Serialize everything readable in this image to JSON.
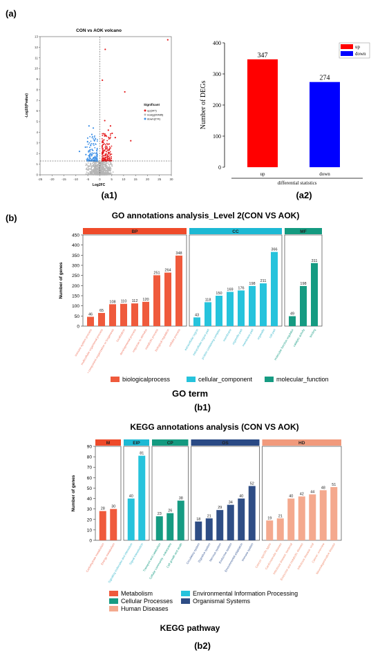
{
  "labels": {
    "a": "(a)",
    "a1": "(a1)",
    "a2": "(a2)",
    "b": "(b)",
    "b1": "(b1)",
    "b2": "(b2)"
  },
  "chart_data": [
    {
      "id": "volcano",
      "type": "scatter",
      "title": "CON vs AOK volcano",
      "xlabel": "Log2FC",
      "ylabel": "-Log10(Pvalue)",
      "xlim": [
        -25,
        30
      ],
      "ylim": [
        0,
        13
      ],
      "xticks": [
        -25,
        -20,
        -15,
        -10,
        -5,
        0,
        5,
        10,
        15,
        20,
        25,
        30
      ],
      "yticks": [
        0,
        1,
        2,
        3,
        4,
        5,
        6,
        7,
        8,
        9,
        10,
        11,
        12,
        13
      ],
      "thresholds": {
        "x": [
          -1,
          1
        ],
        "y": 1.3
      },
      "legend_title": "Significant",
      "series": [
        {
          "name": "up(347)",
          "color": "#e41a1c",
          "points": [
            [
              28.5,
              12.7
            ],
            [
              2.3,
              11.8
            ],
            [
              1.1,
              8.9
            ],
            [
              10.5,
              7.8
            ],
            [
              13,
              3.2
            ],
            [
              4.5,
              4.6
            ],
            [
              5.2,
              3.9
            ],
            [
              3.6,
              4.2
            ],
            [
              6.5,
              3.5
            ],
            [
              2.1,
              5.1
            ],
            [
              3.9,
              2.9
            ],
            [
              2.6,
              3.7
            ]
          ]
        },
        {
          "name": "nosig(20485)",
          "color": "#b5b5b5",
          "points": []
        },
        {
          "name": "down(274)",
          "color": "#3a8ee6",
          "points": [
            [
              -4.5,
              4.6
            ],
            [
              -2.7,
              4.4
            ],
            [
              -3.3,
              3.8
            ],
            [
              -5.1,
              3.1
            ],
            [
              -6,
              2.6
            ],
            [
              -2.2,
              3.2
            ],
            [
              -3.8,
              2.8
            ],
            [
              -8.5,
              2.2
            ],
            [
              -4.2,
              2.3
            ],
            [
              -5.8,
              1.9
            ]
          ]
        }
      ]
    },
    {
      "id": "degs",
      "type": "bar",
      "categories": [
        "up",
        "down"
      ],
      "values": [
        347,
        274
      ],
      "colors": [
        "#ff0000",
        "#0000ff"
      ],
      "xlabel": "differential statistics",
      "ylabel": "Number of DEGs",
      "ylim": [
        0,
        400
      ],
      "yticks": [
        0,
        100,
        200,
        300,
        400
      ],
      "legend": [
        "up",
        "down"
      ]
    },
    {
      "id": "go",
      "type": "bar",
      "title": "GO annotations analysis_Level 2(CON VS AOK)",
      "ylabel": "Number of genes",
      "xlabel": "GO term",
      "ylim": [
        0,
        450
      ],
      "yticks": [
        0,
        50,
        100,
        150,
        200,
        250,
        300,
        350,
        400,
        450
      ],
      "groups": [
        {
          "short": "BP",
          "name": "biologicalprocess",
          "color": "#ef5a3c",
          "header_color": "#ef4b2a",
          "text_color": "#f07a66",
          "items": [
            [
              "immune system process",
              46
            ],
            [
              "multicellular organismal process",
              65
            ],
            [
              "cellular component organization or biogenesis",
              108
            ],
            [
              "localization",
              110
            ],
            [
              "developmental process",
              112
            ],
            [
              "response to stimulus",
              120
            ],
            [
              "metabolic process",
              251
            ],
            [
              "biological regulation",
              264
            ],
            [
              "cellular process",
              348
            ]
          ]
        },
        {
          "short": "CC",
          "name": "cellular_component",
          "color": "#26c3dc",
          "header_color": "#1db9d4",
          "text_color": "#3ab8cc",
          "items": [
            [
              "extracellular region",
              43
            ],
            [
              "extracellular region part",
              118
            ],
            [
              "protein-containing complex",
              150
            ],
            [
              "membrane",
              169
            ],
            [
              "organelle part",
              176
            ],
            [
              "membrane part",
              198
            ],
            [
              "organelle",
              211
            ],
            [
              "cell part",
              366
            ]
          ]
        },
        {
          "short": "MF",
          "name": "molecular_function",
          "color": "#169b82",
          "header_color": "#149a80",
          "text_color": "#169b82",
          "items": [
            [
              "molecular function regulator",
              49
            ],
            [
              "catalytic activity",
              198
            ],
            [
              "binding",
              311
            ]
          ]
        }
      ]
    },
    {
      "id": "kegg",
      "type": "bar",
      "title": "KEGG annotations analysis (CON VS AOK)",
      "ylabel": "Number of genes",
      "xlabel": "KEGG pathway",
      "ylim": [
        0,
        90
      ],
      "yticks": [
        0,
        10,
        20,
        30,
        40,
        50,
        60,
        70,
        80,
        90
      ],
      "groups": [
        {
          "short": "M",
          "name": "Metabolism",
          "color": "#ef5a3c",
          "header_color": "#ee4a2a",
          "text_color": "#f07a66",
          "items": [
            [
              "Carbohydrate metabolism",
              28
            ],
            [
              "Energy metabolism",
              30
            ]
          ]
        },
        {
          "short": "EIP",
          "name": "Environmental Information Processing",
          "color": "#26c3dc",
          "header_color": "#1db9d4",
          "text_color": "#3ab8cc",
          "items": [
            [
              "Signaling molecules and interaction",
              40
            ],
            [
              "Signal transduction",
              81
            ]
          ]
        },
        {
          "short": "CP",
          "name": "Cellular Processes",
          "color": "#169b82",
          "header_color": "#149a80",
          "text_color": "#169b82",
          "items": [
            [
              "Transport and catabolism",
              23
            ],
            [
              "Cellular community - eukaryotes",
              26
            ],
            [
              "Cell growth and death",
              38
            ]
          ]
        },
        {
          "short": "OS",
          "name": "Organismal Systems",
          "color": "#2e4d85",
          "header_color": "#2a4a85",
          "text_color": "#3a5a95",
          "items": [
            [
              "Circulatory system",
              18
            ],
            [
              "Digestive system",
              21
            ],
            [
              "Nervous system",
              29
            ],
            [
              "Endocrine system",
              34
            ],
            [
              "Environmental adaptation",
              40
            ],
            [
              "Immune system",
              52
            ]
          ]
        },
        {
          "short": "HD",
          "name": "Human Diseases",
          "color": "#f4a98e",
          "header_color": "#f19a7c",
          "text_color": "#f08a6c",
          "items": [
            [
              "Cancer: specific types",
              19
            ],
            [
              "Cardiovascular disease",
              21
            ],
            [
              "Infectious disease: bacterial",
              40
            ],
            [
              "Endocrine and metabolic disease",
              42
            ],
            [
              "Infectious disease: viral",
              44
            ],
            [
              "Cancer: overview",
              48
            ],
            [
              "Neurodegenerative disease",
              51
            ]
          ]
        }
      ]
    }
  ]
}
